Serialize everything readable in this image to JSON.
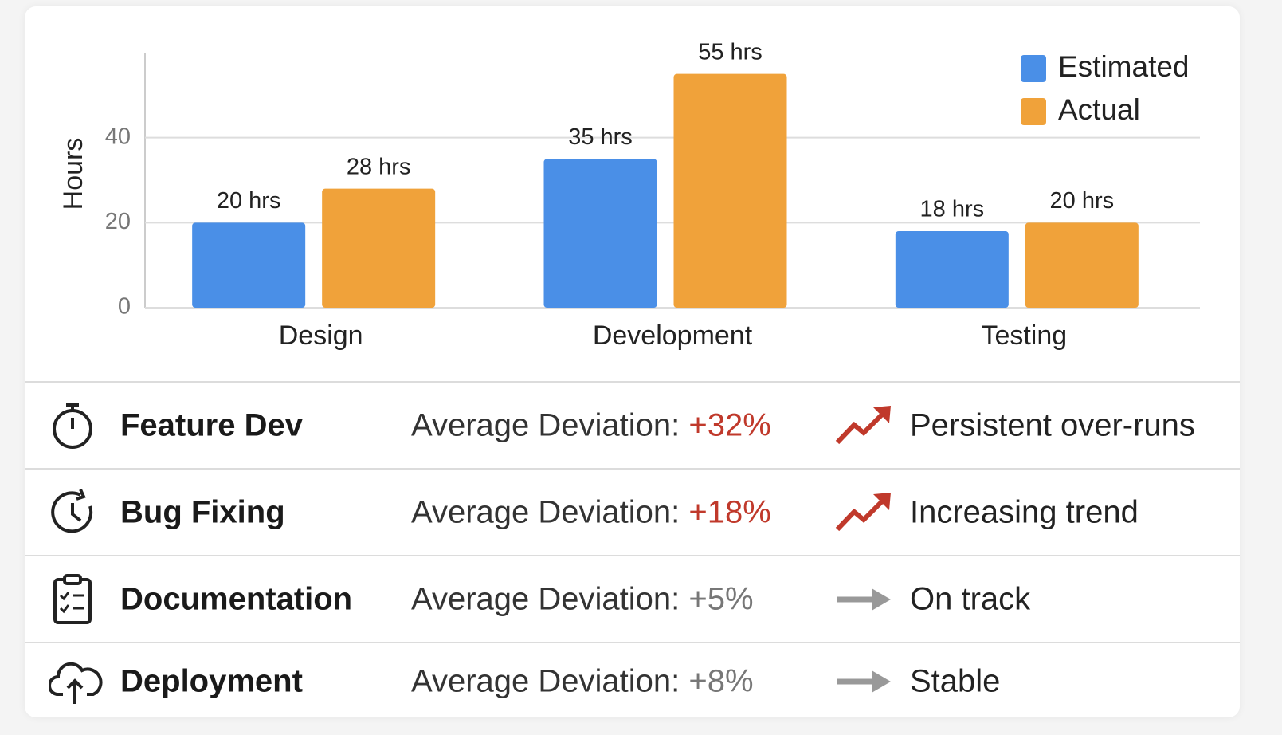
{
  "chart_data": {
    "type": "bar",
    "ylabel": "Hours",
    "categories": [
      "Design",
      "Development",
      "Testing"
    ],
    "series": [
      {
        "name": "Estimated",
        "color": "#4a8fe7",
        "values": [
          20,
          35,
          18
        ],
        "value_labels": [
          "20 hrs",
          "35 hrs",
          "18 hrs"
        ]
      },
      {
        "name": "Actual",
        "color": "#f0a23a",
        "values": [
          28,
          55,
          20
        ],
        "value_labels": [
          "28 hrs",
          "55 hrs",
          "20 hrs"
        ]
      }
    ],
    "ylim": [
      0,
      60
    ],
    "yticks": [
      0,
      20,
      40
    ],
    "grid": true,
    "legend": "top-right"
  },
  "table": {
    "rows": [
      {
        "label": "Feature Dev",
        "deviation_label": "Average Deviation:",
        "deviation": "+32%",
        "trend": "Persistent over-runs"
      },
      {
        "label": "Bug Fixing",
        "deviation_label": "Average Deviation:",
        "deviation": "+18%",
        "trend": "Increasing trend"
      },
      {
        "label": "Documentation",
        "deviation_label": "Average Deviation:",
        "deviation": "+5%",
        "trend": "On track"
      },
      {
        "label": "Deployment",
        "deviation_label": "Average Deviation:",
        "deviation": "+8%",
        "trend": "Stable"
      }
    ]
  }
}
